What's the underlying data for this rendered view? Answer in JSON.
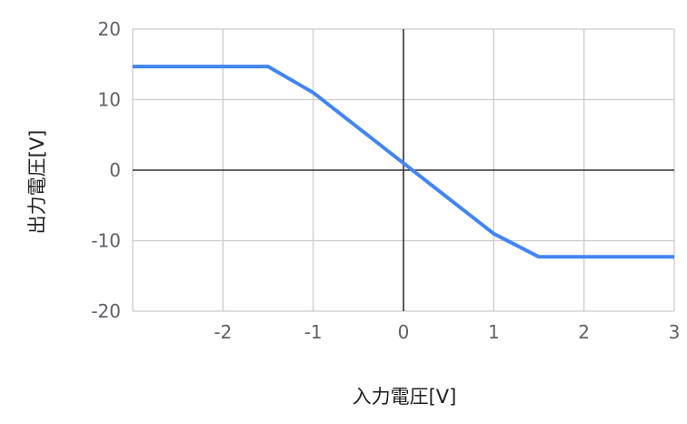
{
  "chart_data": {
    "type": "line",
    "title": "",
    "xlabel": "入力電圧[V]",
    "ylabel": "出力電圧[V]",
    "xlim": [
      -3,
      3
    ],
    "ylim": [
      -20,
      20
    ],
    "xticks": [
      -2,
      -1,
      0,
      1,
      2,
      3
    ],
    "yticks": [
      20,
      10,
      0,
      -10,
      -20
    ],
    "grid": true,
    "legend": "none",
    "series": [
      {
        "color": "#4285f4",
        "x": [
          -3,
          -1.5,
          -1,
          0,
          1,
          1.5,
          3
        ],
        "y": [
          14.7,
          14.7,
          11,
          1,
          -9,
          -12.3,
          -12.3
        ]
      }
    ]
  }
}
